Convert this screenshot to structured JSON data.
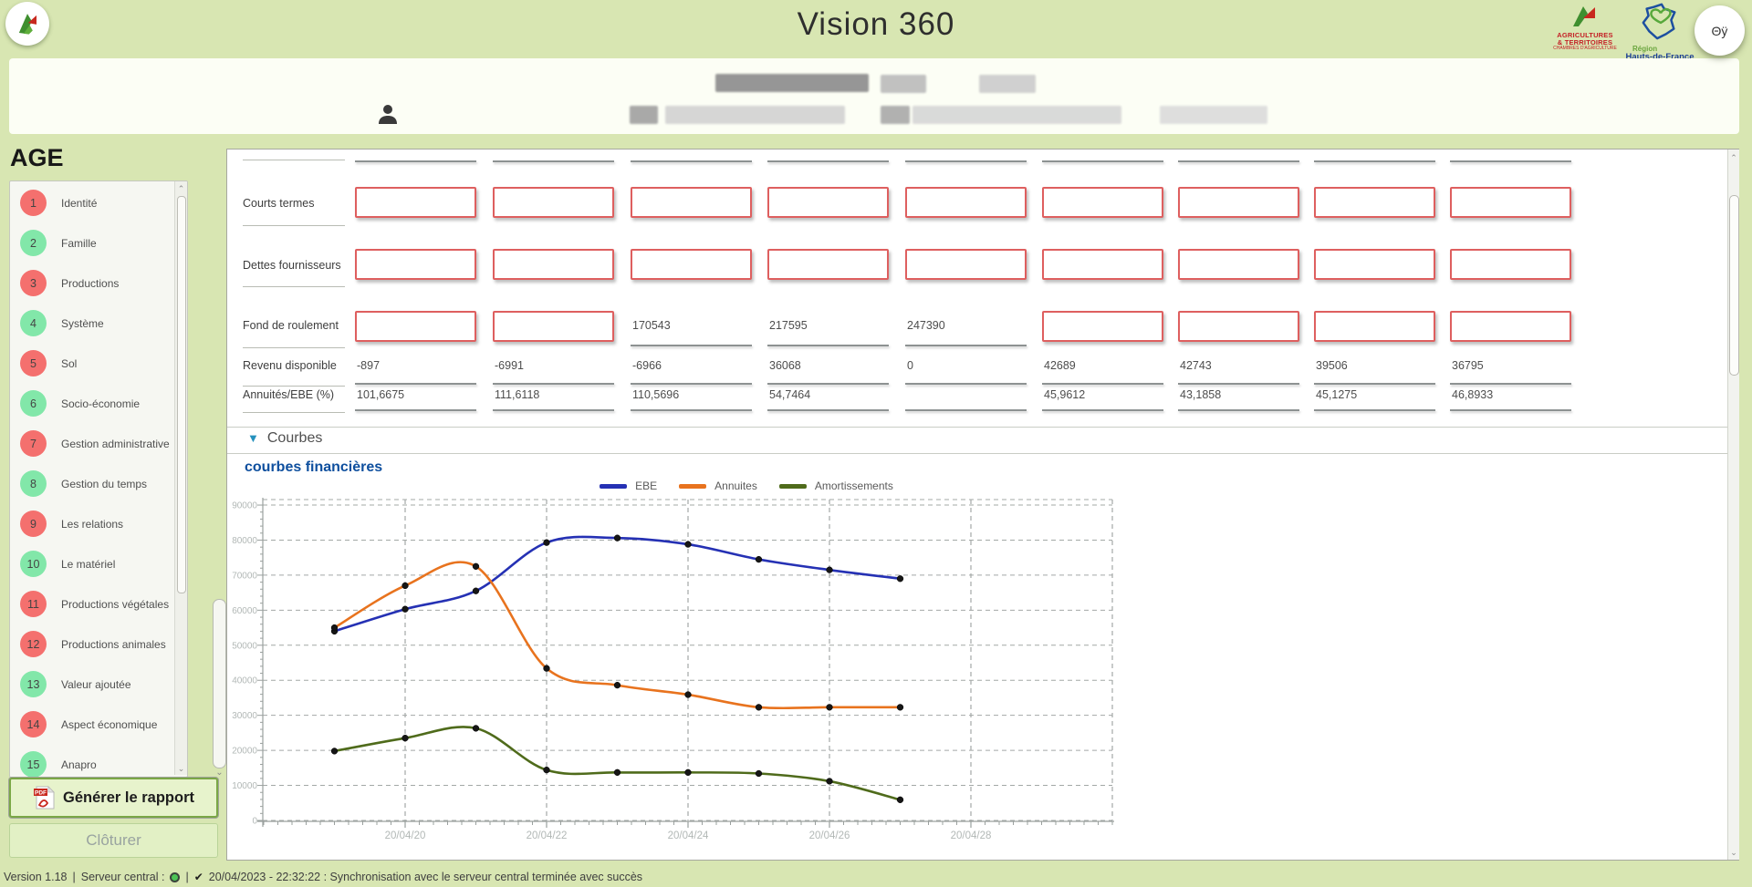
{
  "app": {
    "title": "Vision 360",
    "background": "#d8e6b2"
  },
  "header": {
    "avatar_label": "Θÿ",
    "agri_logo": {
      "line1": "AGRICULTURES",
      "line2": "& TERRITOIRES",
      "line3": "CHAMBRES D'AGRICULTURE"
    },
    "region_logo": {
      "line1": "Région",
      "line2": "Hauts-de-France"
    }
  },
  "sidebar": {
    "title": "AGE",
    "badge_colors": {
      "red": "#f4706e",
      "green": "#82e7a9"
    },
    "items": [
      {
        "num": "1",
        "label": "Identité",
        "status": "red"
      },
      {
        "num": "2",
        "label": "Famille",
        "status": "green"
      },
      {
        "num": "3",
        "label": "Productions",
        "status": "red"
      },
      {
        "num": "4",
        "label": "Système",
        "status": "green"
      },
      {
        "num": "5",
        "label": "Sol",
        "status": "red"
      },
      {
        "num": "6",
        "label": "Socio-économie",
        "status": "green"
      },
      {
        "num": "7",
        "label": "Gestion administrative",
        "status": "red"
      },
      {
        "num": "8",
        "label": "Gestion du temps",
        "status": "green"
      },
      {
        "num": "9",
        "label": "Les relations",
        "status": "red"
      },
      {
        "num": "10",
        "label": "Le matériel",
        "status": "green"
      },
      {
        "num": "11",
        "label": "Productions végétales",
        "status": "red"
      },
      {
        "num": "12",
        "label": "Productions animales",
        "status": "red"
      },
      {
        "num": "13",
        "label": "Valeur ajoutée",
        "status": "green"
      },
      {
        "num": "14",
        "label": "Aspect économique",
        "status": "red"
      },
      {
        "num": "15",
        "label": "Anapro",
        "status": "green"
      }
    ],
    "report_button": "Générer le rapport",
    "close_button": "Clôturer"
  },
  "table": {
    "columns": 9,
    "input_border_color": "#de5f5f",
    "rows": [
      {
        "label": "Courts termes",
        "cells": [
          null,
          null,
          null,
          null,
          null,
          null,
          null,
          null,
          null
        ]
      },
      {
        "label": "Dettes fournisseurs",
        "cells": [
          null,
          null,
          null,
          null,
          null,
          null,
          null,
          null,
          null
        ]
      },
      {
        "label": "Fond de roulement",
        "cells": [
          null,
          null,
          "170543",
          "217595",
          "247390",
          null,
          null,
          null,
          null
        ]
      },
      {
        "label": "Revenu disponible",
        "cells": [
          "-897",
          "-6991",
          "-6966",
          "36068",
          "0",
          "42689",
          "42743",
          "39506",
          "36795"
        ]
      },
      {
        "label": "Annuités/EBE (%)",
        "cells": [
          "101,6675",
          "111,6118",
          "110,5696",
          "54,7464",
          "",
          "45,9612",
          "43,1858",
          "45,1275",
          "46,8933"
        ]
      }
    ]
  },
  "sections": {
    "courbes": "Courbes",
    "collapse_icon": "▼"
  },
  "chart_data": {
    "type": "line",
    "title": "courbes financières",
    "x_points": [
      "20/04/19",
      "20/04/20",
      "20/04/21",
      "20/04/22",
      "20/04/23",
      "20/04/24",
      "20/04/25",
      "20/04/26",
      "20/04/27"
    ],
    "x_tick_labels": [
      "20/04/20",
      "20/04/22",
      "20/04/24",
      "20/04/26",
      "20/04/28"
    ],
    "ylim": [
      0,
      90000
    ],
    "y_tick_step": 10000,
    "grid": "dashed",
    "legend_position": "top-center",
    "series": [
      {
        "name": "EBE",
        "color": "#2531b4",
        "values": [
          54000,
          60300,
          65500,
          79300,
          80600,
          78800,
          74500,
          71500,
          69000
        ]
      },
      {
        "name": "Annuites",
        "color": "#e8731e",
        "values": [
          55000,
          67000,
          72500,
          43400,
          38600,
          35900,
          32300,
          32300,
          32300
        ]
      },
      {
        "name": "Amortissements",
        "color": "#4f6b1b",
        "values": [
          19800,
          23500,
          26300,
          14400,
          13700,
          13700,
          13400,
          11200,
          5900
        ]
      }
    ]
  },
  "footer": {
    "version": "Version 1.18",
    "separator": "|",
    "server_label": "Serveur central :",
    "check": "✔",
    "sync_message": "20/04/2023 - 22:32:22 : Synchronisation avec le serveur central terminée avec succès"
  }
}
